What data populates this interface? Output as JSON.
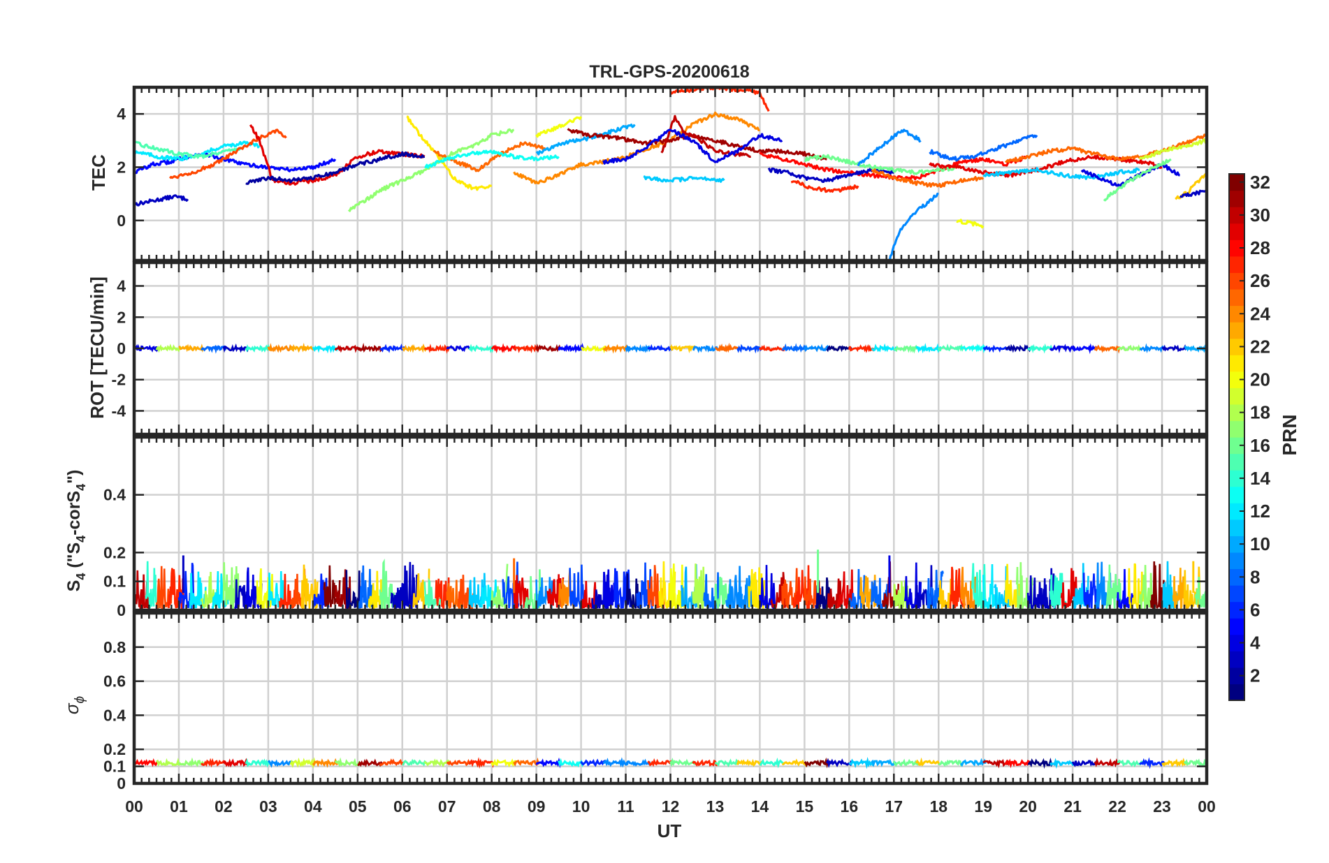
{
  "chart_data": {
    "type": "line",
    "title": "TRL-GPS-20200618",
    "xlabel": "UT",
    "xlim": [
      0,
      24
    ],
    "x_tick_labels": [
      "00",
      "01",
      "02",
      "03",
      "04",
      "05",
      "06",
      "07",
      "08",
      "09",
      "10",
      "11",
      "12",
      "13",
      "14",
      "15",
      "16",
      "17",
      "18",
      "19",
      "20",
      "21",
      "22",
      "23",
      "00"
    ],
    "panels": [
      {
        "id": "tec",
        "ylabel": "TEC",
        "ylim": [
          -1.5,
          5
        ],
        "y_ticks": [
          0,
          2,
          4
        ],
        "y_tick_labels": [
          "0",
          "2",
          "4"
        ],
        "series": [
          {
            "prn": 3,
            "x": [
              0,
              0.3,
              0.6,
              0.9,
              1.2
            ],
            "y": [
              0.6,
              0.7,
              0.8,
              0.9,
              0.8
            ]
          },
          {
            "prn": 5,
            "x": [
              0,
              0.4,
              0.8,
              1.2,
              1.6,
              2.0,
              2.5,
              3.0,
              3.5,
              4.0,
              4.5
            ],
            "y": [
              1.8,
              2.1,
              2.2,
              2.4,
              2.5,
              2.3,
              2.1,
              2.0,
              1.9,
              2.0,
              2.3
            ]
          },
          {
            "prn": 12,
            "x": [
              0,
              0.5,
              1.0,
              1.5,
              2.0,
              2.5,
              2.8
            ],
            "y": [
              2.6,
              2.4,
              2.3,
              2.5,
              2.8,
              2.9,
              2.8
            ]
          },
          {
            "prn": 15,
            "x": [
              0,
              0.5,
              1.0,
              1.5,
              2.0,
              2.4
            ],
            "y": [
              2.9,
              2.7,
              2.5,
              2.4,
              2.6,
              2.7
            ]
          },
          {
            "prn": 26,
            "x": [
              0.8,
              1.3,
              1.8,
              2.3,
              2.8,
              3.2,
              3.4
            ],
            "y": [
              1.6,
              1.8,
              2.1,
              2.6,
              3.1,
              3.4,
              3.1
            ]
          },
          {
            "prn": 29,
            "x": [
              2.6,
              2.8,
              3.1,
              3.5,
              4.0,
              4.5,
              5.0,
              5.5,
              6.0,
              6.5
            ],
            "y": [
              3.6,
              3.0,
              1.5,
              1.4,
              1.5,
              1.7,
              2.4,
              2.6,
              2.5,
              2.4
            ]
          },
          {
            "prn": 2,
            "x": [
              2.5,
              3.0,
              3.5,
              4.0,
              4.5,
              5.0,
              5.5,
              6.0,
              6.5
            ],
            "y": [
              1.4,
              1.6,
              1.5,
              1.6,
              1.8,
              2.1,
              2.3,
              2.5,
              2.4
            ]
          },
          {
            "prn": 17,
            "x": [
              4.8,
              5.2,
              5.6,
              6.0,
              6.4,
              6.8,
              7.2,
              7.6,
              8.0,
              8.5
            ],
            "y": [
              0.4,
              0.8,
              1.2,
              1.5,
              1.8,
              2.2,
              2.6,
              2.8,
              3.2,
              3.4
            ]
          },
          {
            "prn": 21,
            "x": [
              6.1,
              6.4,
              6.8,
              7.2,
              7.6,
              8.0
            ],
            "y": [
              3.9,
              3.2,
              2.4,
              1.5,
              1.2,
              1.3
            ]
          },
          {
            "prn": 25,
            "x": [
              6.7,
              7.2,
              7.7,
              8.2,
              8.7,
              9.2
            ],
            "y": [
              2.6,
              2.2,
              1.9,
              2.5,
              2.9,
              2.7
            ]
          },
          {
            "prn": 13,
            "x": [
              6.5,
              7.0,
              7.5,
              8.0,
              8.5,
              9.0,
              9.5
            ],
            "y": [
              2.0,
              2.3,
              2.5,
              2.6,
              2.4,
              2.3,
              2.4
            ]
          },
          {
            "prn": 24,
            "x": [
              8.5,
              9.0,
              9.5,
              10.0,
              10.5,
              11.0,
              11.5,
              12.0,
              12.5,
              13.0,
              13.5,
              14.0
            ],
            "y": [
              1.8,
              1.4,
              1.7,
              2.1,
              2.2,
              2.4,
              2.7,
              3.0,
              3.6,
              4.0,
              3.8,
              3.4
            ]
          },
          {
            "prn": 20,
            "x": [
              9.0,
              9.5,
              10.0
            ],
            "y": [
              3.2,
              3.5,
              3.9
            ]
          },
          {
            "prn": 10,
            "x": [
              9.0,
              9.6,
              10.2,
              10.8,
              11.2
            ],
            "y": [
              2.5,
              2.9,
              3.1,
              3.4,
              3.6
            ]
          },
          {
            "prn": 31,
            "x": [
              9.7,
              10.2,
              10.8,
              11.4,
              12.0,
              12.5,
              13.0,
              13.5,
              14.0,
              14.5,
              15.0,
              15.5
            ],
            "y": [
              3.4,
              3.2,
              3.1,
              2.9,
              3.0,
              3.2,
              3.0,
              2.8,
              2.6,
              2.6,
              2.5,
              2.3
            ]
          },
          {
            "prn": 30,
            "x": [
              11.8,
              12.1,
              12.3,
              12.6,
              13.0,
              13.4,
              13.8
            ],
            "y": [
              2.5,
              3.9,
              3.3,
              3.1,
              2.6,
              2.5,
              2.4
            ]
          },
          {
            "prn": 27,
            "x": [
              12.0,
              12.5,
              13.0,
              13.5,
              14.0,
              14.2
            ],
            "y": [
              4.8,
              4.9,
              5.0,
              4.9,
              4.8,
              4.1
            ]
          },
          {
            "prn": 4,
            "x": [
              10.5,
              11.0,
              11.5,
              12.0,
              12.5,
              13.0,
              13.5,
              14.0,
              14.5
            ],
            "y": [
              2.2,
              2.3,
              2.8,
              3.4,
              3.0,
              2.2,
              2.6,
              3.2,
              3.0
            ]
          },
          {
            "prn": 11,
            "x": [
              11.4,
              12.0,
              12.6,
              13.2
            ],
            "y": [
              1.6,
              1.5,
              1.6,
              1.5
            ]
          },
          {
            "prn": 28,
            "x": [
              14.0,
              14.5,
              15.0,
              15.5,
              16.0,
              16.5,
              17.0,
              17.5,
              18.0,
              18.5,
              19.0,
              19.5,
              20.0
            ],
            "y": [
              2.5,
              2.3,
              2.1,
              1.9,
              1.8,
              1.7,
              1.6,
              1.6,
              1.9,
              2.2,
              2.3,
              2.1,
              2.4
            ]
          },
          {
            "prn": 3,
            "x": [
              14.2,
              14.6,
              15.0,
              15.5,
              16.0,
              16.5,
              17.0
            ],
            "y": [
              1.9,
              1.8,
              1.6,
              1.5,
              1.7,
              1.9,
              1.8
            ]
          },
          {
            "prn": 27,
            "x": [
              14.7,
              15.2,
              15.7,
              16.2
            ],
            "y": [
              1.5,
              1.2,
              1.1,
              1.3
            ]
          },
          {
            "prn": 16,
            "x": [
              15.0,
              15.5,
              16.0,
              16.5,
              17.0,
              17.5,
              18.0,
              18.5
            ],
            "y": [
              2.3,
              2.4,
              2.2,
              2.0,
              1.9,
              1.8,
              1.9,
              2.0
            ]
          },
          {
            "prn": 9,
            "x": [
              16.9,
              17.1,
              17.4,
              17.7,
              18.0
            ],
            "y": [
              -1.5,
              -0.5,
              0.2,
              0.6,
              1.0
            ]
          },
          {
            "prn": 9,
            "x": [
              16.2,
              16.8,
              17.2,
              17.6
            ],
            "y": [
              2.1,
              2.9,
              3.4,
              3.0
            ]
          },
          {
            "prn": 25,
            "x": [
              16.5,
              17.0,
              17.5,
              18.0,
              18.5,
              19.0
            ],
            "y": [
              1.9,
              1.6,
              1.4,
              1.3,
              1.5,
              1.6
            ]
          },
          {
            "prn": 20,
            "x": [
              18.4,
              18.7,
              19.0
            ],
            "y": [
              0.0,
              -0.1,
              -0.2
            ]
          },
          {
            "prn": 8,
            "x": [
              17.8,
              18.3,
              18.8,
              19.3,
              19.8,
              20.2
            ],
            "y": [
              2.6,
              2.3,
              2.4,
              2.7,
              3.0,
              3.2
            ]
          },
          {
            "prn": 29,
            "x": [
              17.8,
              18.4,
              19.0,
              19.6,
              20.2,
              20.8,
              21.4,
              22.0,
              22.6,
              23.0
            ],
            "y": [
              2.1,
              2.0,
              1.8,
              1.7,
              1.9,
              2.2,
              2.4,
              2.3,
              2.2,
              2.0
            ]
          },
          {
            "prn": 25,
            "x": [
              19.5,
              20.0,
              20.5,
              21.0,
              21.5,
              22.0,
              22.5,
              23.0,
              23.5,
              24.0
            ],
            "y": [
              2.2,
              2.4,
              2.6,
              2.7,
              2.5,
              2.3,
              2.4,
              2.6,
              2.9,
              3.2
            ]
          },
          {
            "prn": 11,
            "x": [
              19.0,
              19.6,
              20.2,
              20.8,
              21.4,
              22.0,
              22.5
            ],
            "y": [
              1.7,
              1.8,
              1.9,
              1.7,
              1.6,
              1.8,
              1.9
            ]
          },
          {
            "prn": 4,
            "x": [
              21.2,
              21.6,
              22.0,
              22.5,
              23.0,
              23.4
            ],
            "y": [
              1.9,
              1.6,
              1.3,
              1.7,
              2.1,
              1.7
            ]
          },
          {
            "prn": 16,
            "x": [
              21.7,
              22.2,
              22.7,
              23.2
            ],
            "y": [
              0.8,
              1.4,
              1.9,
              2.3
            ]
          },
          {
            "prn": 19,
            "x": [
              22.5,
              23.0,
              23.5,
              24.0
            ],
            "y": [
              2.3,
              2.6,
              2.8,
              3.0
            ]
          },
          {
            "prn": 22,
            "x": [
              23.3,
              23.6,
              24.0
            ],
            "y": [
              0.8,
              1.1,
              1.8
            ]
          },
          {
            "prn": 3,
            "x": [
              23.4,
              23.7,
              24.0
            ],
            "y": [
              0.9,
              1.0,
              1.1
            ]
          }
        ]
      },
      {
        "id": "rot",
        "ylabel": "ROT [TECU/min]",
        "ylim": [
          -5.5,
          5.5
        ],
        "y_ticks": [
          -4,
          -2,
          0,
          2,
          4
        ],
        "y_tick_labels": [
          "-4",
          "-2",
          "0",
          "2",
          "4"
        ],
        "description_value": 0,
        "note": "All PRNs near 0 TECU/min (within about ±0.2)"
      },
      {
        "id": "s4",
        "ylabel": "S4 (\"S4-corS4\")",
        "ylabel_parts": {
          "base": "S",
          "sub": "4",
          "mid": " (\"S",
          "sub2": "4",
          "mid2": "-corS",
          "sub3": "4",
          "end": "\")"
        },
        "ylim": [
          0,
          0.6
        ],
        "y_ticks": [
          0,
          0.1,
          0.2,
          0.4
        ],
        "y_tick_labels": [
          "0",
          "0.1",
          "0.2",
          "0.4"
        ],
        "typical_range": [
          0.0,
          0.12
        ],
        "peaks": [
          {
            "x": 1.1,
            "y": 0.19
          },
          {
            "x": 8.5,
            "y": 0.18
          },
          {
            "x": 15.3,
            "y": 0.21
          },
          {
            "x": 16.9,
            "y": 0.19
          },
          {
            "x": 23.7,
            "y": 0.17
          }
        ]
      },
      {
        "id": "sigma_phi",
        "ylabel": "σϕ",
        "ylabel_parts": {
          "base": "σ",
          "sub": "ϕ"
        },
        "ylim": [
          0,
          1
        ],
        "y_ticks": [
          0,
          0.1,
          0.2,
          0.4,
          0.6,
          0.8
        ],
        "y_tick_labels": [
          "0",
          "0.1",
          "0.2",
          "0.4",
          "0.6",
          "0.8"
        ],
        "typical_value": 0.12
      }
    ],
    "colorbar": {
      "label": "PRN",
      "colormap": "jet",
      "range": [
        1,
        32
      ],
      "tick_values": [
        2,
        4,
        6,
        8,
        10,
        12,
        14,
        16,
        18,
        20,
        22,
        24,
        26,
        28,
        30,
        32
      ],
      "tick_labels": [
        "2",
        "4",
        "6",
        "8",
        "10",
        "12",
        "14",
        "16",
        "18",
        "20",
        "22",
        "24",
        "26",
        "28",
        "30",
        "32"
      ]
    }
  }
}
